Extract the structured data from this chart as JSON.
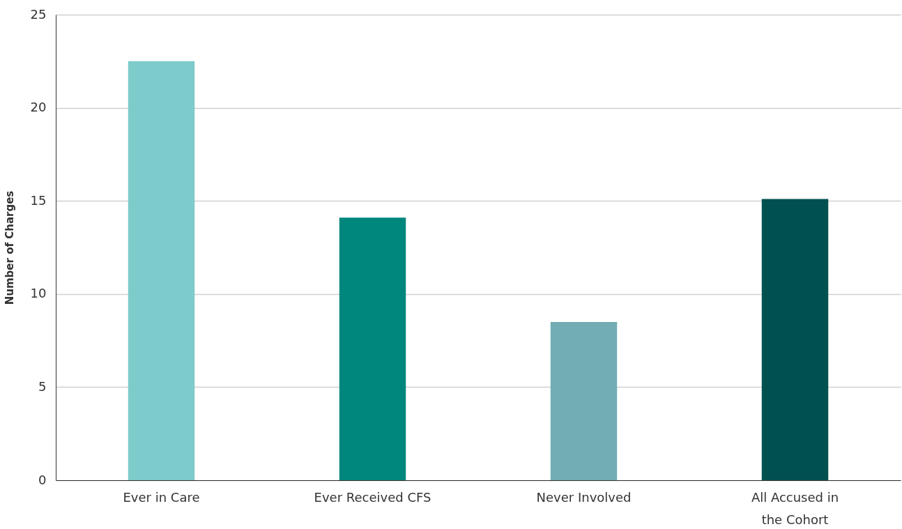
{
  "chart_data": {
    "type": "bar",
    "ylabel": "Number of Charges",
    "categories": [
      "Ever in Care",
      "Ever Received CFS",
      "Never Involved",
      "All Accused in the Cohort"
    ],
    "values": [
      22.5,
      14.1,
      8.5,
      15.1
    ],
    "colors": [
      "#7ecbcb",
      "#00877d",
      "#72adb4",
      "#005050"
    ],
    "ylim": [
      0,
      25
    ],
    "yticks": [
      0,
      5,
      10,
      15,
      20,
      25
    ],
    "grid": "y"
  }
}
